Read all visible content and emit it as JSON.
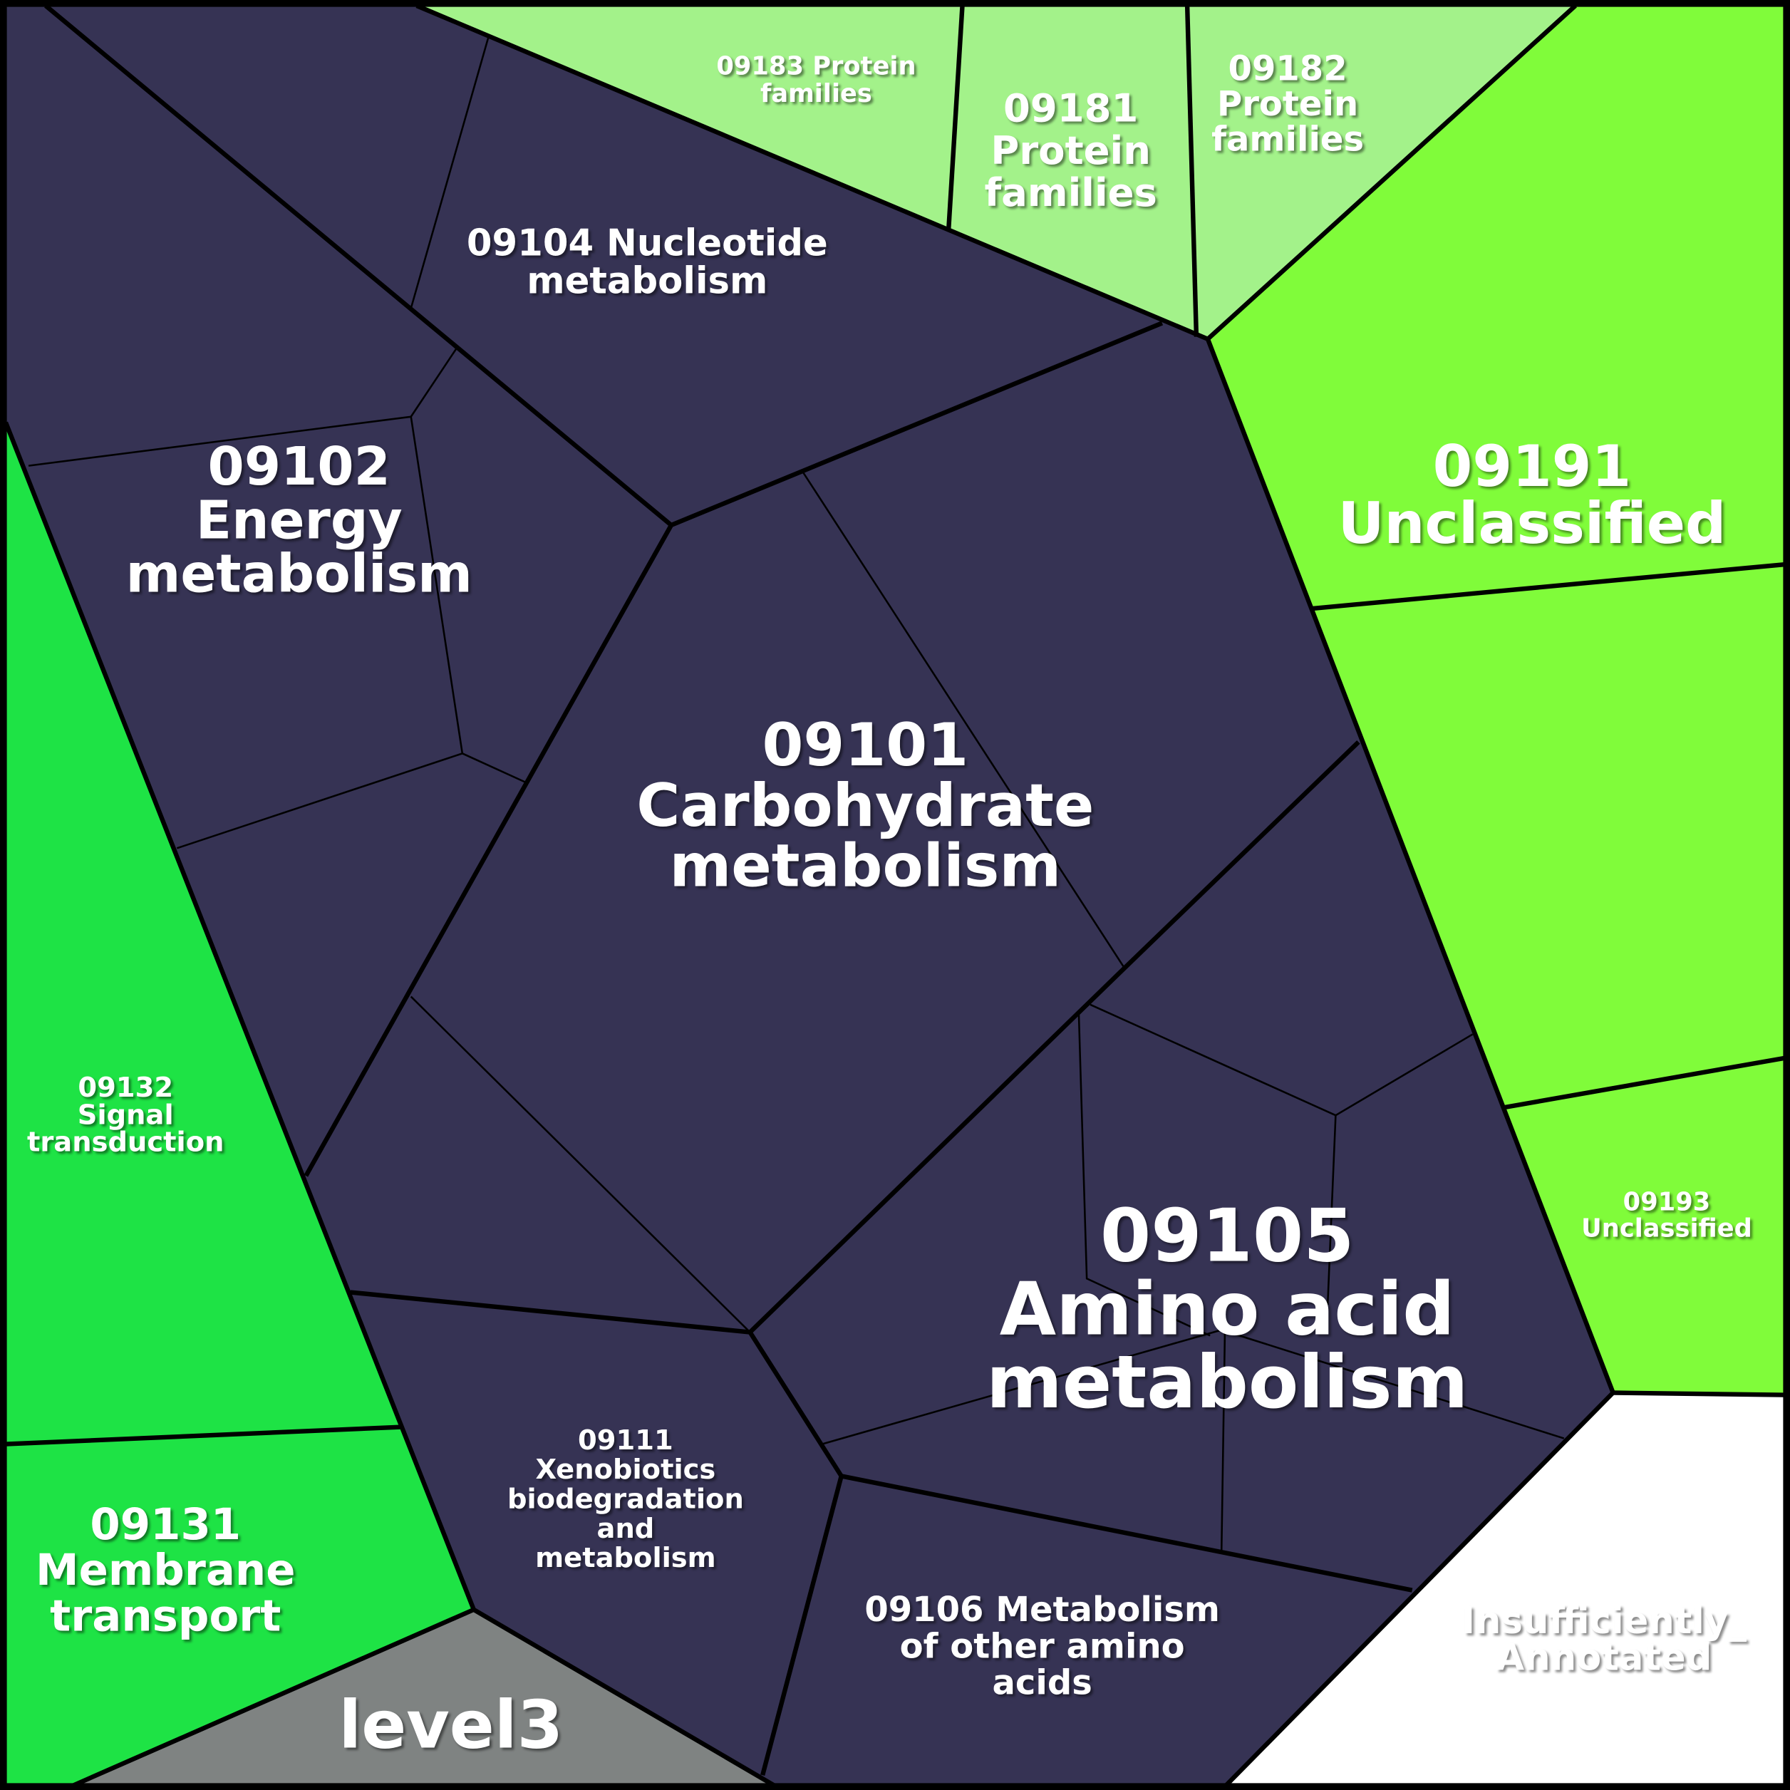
{
  "cells": [
    {
      "lines": [
        "09183 Protein",
        "families"
      ]
    },
    {
      "lines": [
        "09181",
        "Protein",
        "families"
      ]
    },
    {
      "lines": [
        "09182",
        "Protein",
        "families"
      ]
    },
    {
      "lines": [
        "09104 Nucleotide",
        "metabolism"
      ]
    },
    {
      "lines": [
        "09191",
        "Unclassified"
      ]
    },
    {
      "lines": [
        "09102",
        "Energy",
        "metabolism"
      ]
    },
    {
      "lines": [
        "09101",
        "Carbohydrate",
        "metabolism"
      ]
    },
    {
      "lines": [
        "09132",
        "Signal",
        "transduction"
      ]
    },
    {
      "lines": [
        "09193",
        "Unclassified"
      ]
    },
    {
      "lines": [
        "09105",
        "Amino acid",
        "metabolism"
      ]
    },
    {
      "lines": [
        "09111",
        "Xenobiotics",
        "biodegradation",
        "and",
        "metabolism"
      ]
    },
    {
      "lines": [
        "09131",
        "Membrane",
        "transport"
      ]
    },
    {
      "lines": [
        "09106 Metabolism",
        "of other amino",
        "acids"
      ]
    },
    {
      "lines": [
        "Insufficiently_",
        "Annotated"
      ]
    },
    {
      "lines": [
        "level3"
      ]
    }
  ]
}
